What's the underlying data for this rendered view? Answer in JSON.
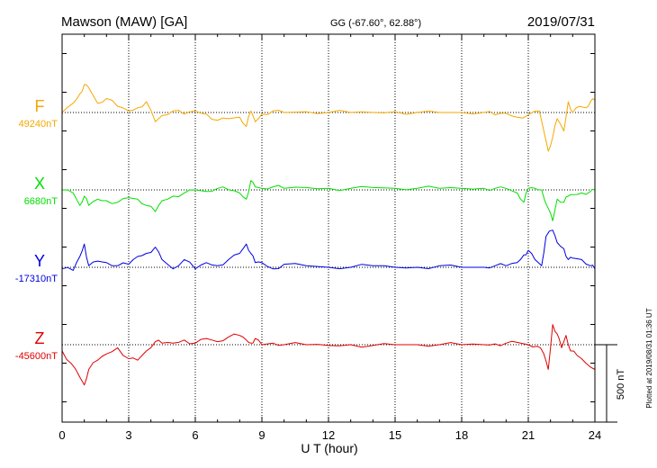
{
  "header": {
    "station": "Mawson (MAW)  [GA]",
    "coords": "GG (-67.60°,  62.88°)",
    "date": "2019/07/31"
  },
  "side_note": "Plotted at 2019/08/31 01:36 UT",
  "scale_label": "500 nT",
  "colors": {
    "F": "#f5a800",
    "X": "#00e000",
    "Y": "#0000e0",
    "Z": "#e00000",
    "frame": "#000000"
  },
  "chart_data": {
    "type": "line",
    "xlabel": "U T (hour)",
    "xlim": [
      0,
      24
    ],
    "xticks": [
      "0",
      "3",
      "6",
      "9",
      "12",
      "15",
      "18",
      "21",
      "24"
    ],
    "grid": true,
    "units": "nT",
    "series": [
      {
        "name": "F",
        "baseline_label": "49240nT",
        "baseline": 49240,
        "t": [
          0,
          0.5,
          0.8,
          1.0,
          1.2,
          1.6,
          2.0,
          2.5,
          3.0,
          3.4,
          3.8,
          4.2,
          4.5,
          5.0,
          5.5,
          6.0,
          6.5,
          7.0,
          7.5,
          8.0,
          8.3,
          8.5,
          8.7,
          9.0,
          9.5,
          10.0,
          11.0,
          12.0,
          13.0,
          14.0,
          15.0,
          16.0,
          17.0,
          18.0,
          19.0,
          19.5,
          20.0,
          20.5,
          21.0,
          21.5,
          21.9,
          22.1,
          22.3,
          22.6,
          22.8,
          23.0,
          23.3,
          23.6,
          23.8,
          24.0
        ],
        "v": [
          49240,
          49300,
          49360,
          49420,
          49400,
          49300,
          49330,
          49280,
          49250,
          49270,
          49310,
          49180,
          49220,
          49250,
          49230,
          49250,
          49230,
          49190,
          49200,
          49210,
          49150,
          49250,
          49180,
          49230,
          49250,
          49240,
          49245,
          49240,
          49240,
          49240,
          49245,
          49240,
          49240,
          49240,
          49240,
          49225,
          49235,
          49210,
          49225,
          49250,
          48990,
          49080,
          49200,
          49120,
          49310,
          49240,
          49280,
          49270,
          49310,
          49320
        ]
      },
      {
        "name": "X",
        "baseline_label": "6680nT",
        "baseline": 6680,
        "t": [
          0,
          0.5,
          0.8,
          1.0,
          1.2,
          1.6,
          2.0,
          2.5,
          3.0,
          3.4,
          3.8,
          4.2,
          4.5,
          5.0,
          5.5,
          6.0,
          6.5,
          7.0,
          7.5,
          8.0,
          8.3,
          8.5,
          8.7,
          9.0,
          9.5,
          10.0,
          11.0,
          12.0,
          13.0,
          14.0,
          15.0,
          16.0,
          17.0,
          18.0,
          19.0,
          19.5,
          20.0,
          20.5,
          20.8,
          21.0,
          21.3,
          21.6,
          21.9,
          22.1,
          22.3,
          22.6,
          22.8,
          23.0,
          23.4,
          23.8,
          24.0
        ],
        "v": [
          6680,
          6660,
          6580,
          6640,
          6580,
          6620,
          6610,
          6600,
          6630,
          6620,
          6580,
          6540,
          6610,
          6640,
          6660,
          6680,
          6670,
          6690,
          6680,
          6660,
          6620,
          6740,
          6700,
          6690,
          6700,
          6690,
          6695,
          6690,
          6690,
          6695,
          6690,
          6690,
          6690,
          6690,
          6690,
          6690,
          6690,
          6660,
          6600,
          6690,
          6690,
          6680,
          6560,
          6480,
          6620,
          6600,
          6640,
          6650,
          6660,
          6670,
          6680
        ]
      },
      {
        "name": "Y",
        "baseline_label": "-17310nT",
        "baseline": -17310,
        "t": [
          0,
          0.5,
          0.8,
          1.0,
          1.2,
          1.6,
          2.0,
          2.5,
          3.0,
          3.4,
          3.8,
          4.2,
          4.5,
          5.0,
          5.5,
          6.0,
          6.5,
          7.0,
          7.5,
          8.0,
          8.3,
          8.5,
          8.7,
          9.0,
          9.5,
          10.0,
          11.0,
          12.0,
          13.0,
          14.0,
          15.0,
          16.0,
          17.0,
          18.0,
          19.0,
          19.5,
          20.0,
          20.5,
          20.8,
          21.0,
          21.3,
          21.6,
          21.8,
          22.1,
          22.3,
          22.6,
          22.8,
          23.0,
          23.4,
          23.8,
          24.0
        ],
        "v": [
          -17320,
          -17330,
          -17240,
          -17160,
          -17300,
          -17270,
          -17280,
          -17300,
          -17290,
          -17240,
          -17220,
          -17180,
          -17260,
          -17320,
          -17260,
          -17320,
          -17280,
          -17300,
          -17260,
          -17220,
          -17160,
          -17220,
          -17280,
          -17280,
          -17320,
          -17290,
          -17300,
          -17310,
          -17310,
          -17300,
          -17310,
          -17310,
          -17300,
          -17310,
          -17310,
          -17300,
          -17300,
          -17280,
          -17230,
          -17200,
          -17260,
          -17300,
          -17110,
          -17070,
          -17150,
          -17190,
          -17260,
          -17250,
          -17260,
          -17300,
          -17320
        ]
      },
      {
        "name": "Z",
        "baseline_label": "-45600nT",
        "baseline": -45600,
        "t": [
          0,
          0.4,
          0.8,
          1.0,
          1.2,
          1.6,
          2.0,
          2.5,
          3.0,
          3.4,
          3.8,
          4.2,
          4.5,
          5.0,
          5.5,
          6.0,
          6.5,
          7.0,
          7.5,
          8.0,
          8.3,
          8.5,
          8.7,
          9.0,
          9.5,
          10.0,
          11.0,
          12.0,
          13.0,
          14.0,
          15.0,
          16.0,
          17.0,
          18.0,
          19.0,
          19.5,
          20.0,
          20.5,
          21.0,
          21.4,
          21.7,
          21.9,
          22.1,
          22.3,
          22.5,
          22.7,
          22.9,
          23.2,
          23.6,
          24.0
        ],
        "v": [
          -45640,
          -45720,
          -45810,
          -45860,
          -45760,
          -45700,
          -45660,
          -45620,
          -45690,
          -45700,
          -45640,
          -45580,
          -45590,
          -45590,
          -45570,
          -45590,
          -45560,
          -45580,
          -45550,
          -45540,
          -45570,
          -45590,
          -45560,
          -45600,
          -45590,
          -45600,
          -45600,
          -45605,
          -45600,
          -45605,
          -45600,
          -45600,
          -45600,
          -45600,
          -45600,
          -45595,
          -45590,
          -45585,
          -45600,
          -45610,
          -45660,
          -45760,
          -45470,
          -45530,
          -45620,
          -45540,
          -45640,
          -45670,
          -45720,
          -45760
        ]
      }
    ]
  }
}
